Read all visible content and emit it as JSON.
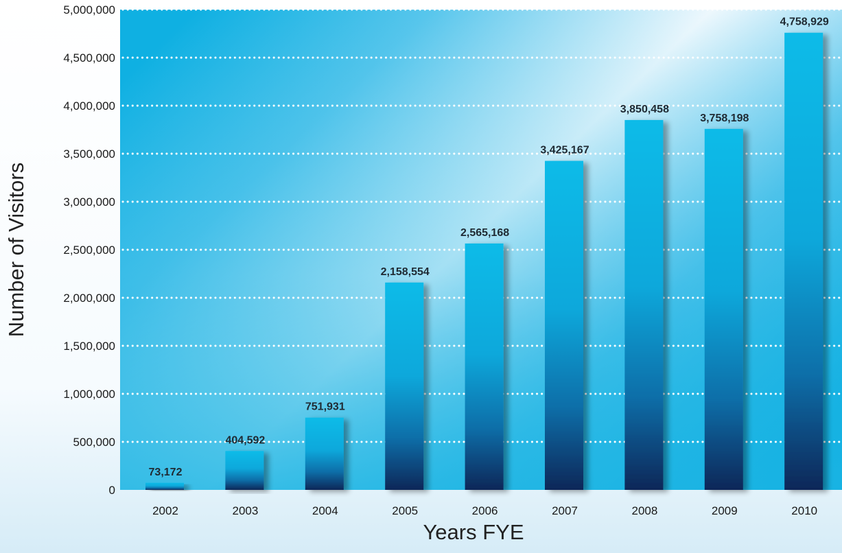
{
  "chart_data": {
    "type": "bar",
    "title": "",
    "xlabel": "Years FYE",
    "ylabel": "Number of Visitors",
    "categories": [
      "2002",
      "2003",
      "2004",
      "2005",
      "2006",
      "2007",
      "2008",
      "2009",
      "2010"
    ],
    "values": [
      73172,
      404592,
      751931,
      2158554,
      2565168,
      3425167,
      3850458,
      3758198,
      4758929
    ],
    "value_labels": [
      "73,172",
      "404,592",
      "751,931",
      "2,158,554",
      "2,565,168",
      "3,425,167",
      "3,850,458",
      "3,758,198",
      "4,758,929"
    ],
    "ylim": [
      0,
      5000000
    ],
    "y_ticks": [
      0,
      500000,
      1000000,
      1500000,
      2000000,
      2500000,
      3000000,
      3500000,
      4000000,
      4500000,
      5000000
    ],
    "y_tick_labels": [
      "0",
      "500,000",
      "1,000,000",
      "1,500,000",
      "2,000,000",
      "2,500,000",
      "3,000,000",
      "3,500,000",
      "4,000,000",
      "4,500,000",
      "5,000,000"
    ],
    "grid": "horizontal dotted",
    "legend": "none",
    "colors": {
      "bar_top": "#0ab8e6",
      "bar_bottom": "#0c2d5e",
      "plot_background": "#12aee0",
      "gridline": "#ffffff"
    }
  }
}
